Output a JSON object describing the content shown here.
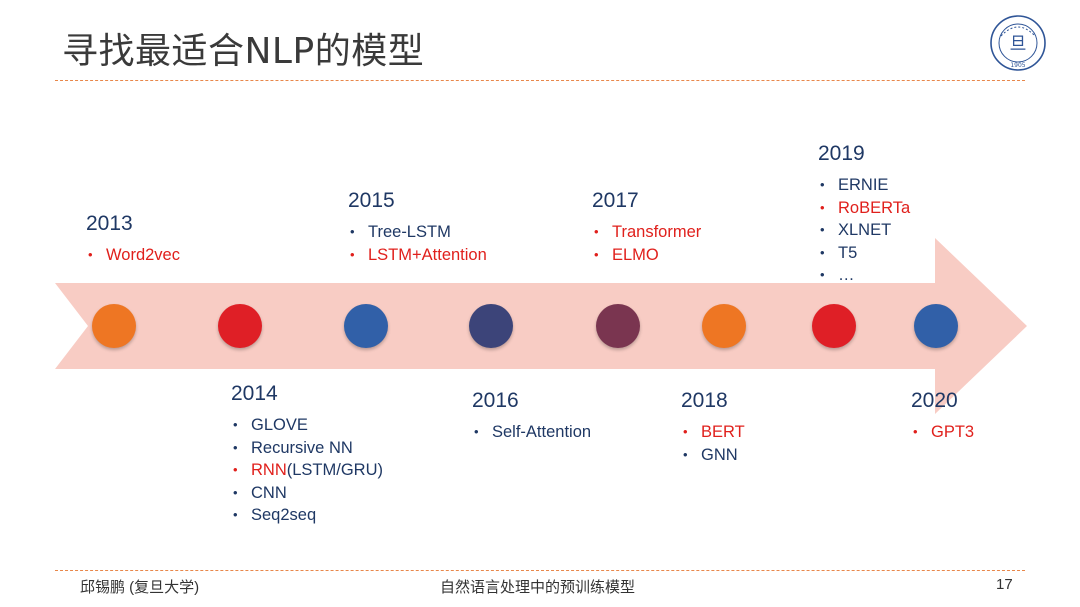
{
  "slide": {
    "title": "寻找最适合NLP的模型",
    "footer_left": "邱锡鹏 (复旦大学)",
    "footer_center": "自然语言处理中的预训练模型",
    "page_number": "17",
    "logo": {
      "icon": "fudan-university-seal",
      "seal_year": "1905"
    }
  },
  "colors": {
    "accent_orange": "#ee7623",
    "accent_red": "#df1f26",
    "accent_blue": "#3160a8",
    "accent_indigo": "#3c4479",
    "accent_plum": "#7a3550",
    "arrow_fill": "#f8ccc4",
    "highlight_text": "#e0201c",
    "normal_text": "#1f3864"
  },
  "timeline": {
    "dots": [
      {
        "color": "#ee7623"
      },
      {
        "color": "#df1f26"
      },
      {
        "color": "#3160a8"
      },
      {
        "color": "#3c4479"
      },
      {
        "color": "#7a3550"
      },
      {
        "color": "#ee7623"
      },
      {
        "color": "#df1f26"
      },
      {
        "color": "#3160a8"
      }
    ],
    "groups": [
      {
        "year": "2013",
        "items": [
          {
            "text": "Word2vec",
            "highlight": true
          }
        ]
      },
      {
        "year": "2014",
        "items": [
          {
            "text": "GLOVE",
            "highlight": false
          },
          {
            "text": "Recursive NN",
            "highlight": false
          },
          {
            "text": "RNN",
            "suffix": "(LSTM/GRU)",
            "highlight": true
          },
          {
            "text": "CNN",
            "highlight": false
          },
          {
            "text": "Seq2seq",
            "highlight": false
          }
        ]
      },
      {
        "year": "2015",
        "items": [
          {
            "text": "Tree-LSTM",
            "highlight": false
          },
          {
            "text": "LSTM+Attention",
            "highlight": true
          }
        ]
      },
      {
        "year": "2016",
        "items": [
          {
            "text": "Self-Attention",
            "highlight": false
          }
        ]
      },
      {
        "year": "2017",
        "items": [
          {
            "text": "Transformer",
            "highlight": true
          },
          {
            "text": "ELMO",
            "highlight": true
          }
        ]
      },
      {
        "year": "2018",
        "items": [
          {
            "text": "BERT",
            "highlight": true
          },
          {
            "text": "GNN",
            "highlight": false
          }
        ]
      },
      {
        "year": "2019",
        "items": [
          {
            "text": "ERNIE",
            "highlight": false
          },
          {
            "text": "RoBERTa",
            "highlight": true
          },
          {
            "text": "XLNET",
            "highlight": false
          },
          {
            "text": "T5",
            "highlight": false
          },
          {
            "text": "…",
            "highlight": false
          }
        ]
      },
      {
        "year": "2020",
        "items": [
          {
            "text": "GPT3",
            "highlight": true
          }
        ]
      }
    ]
  }
}
